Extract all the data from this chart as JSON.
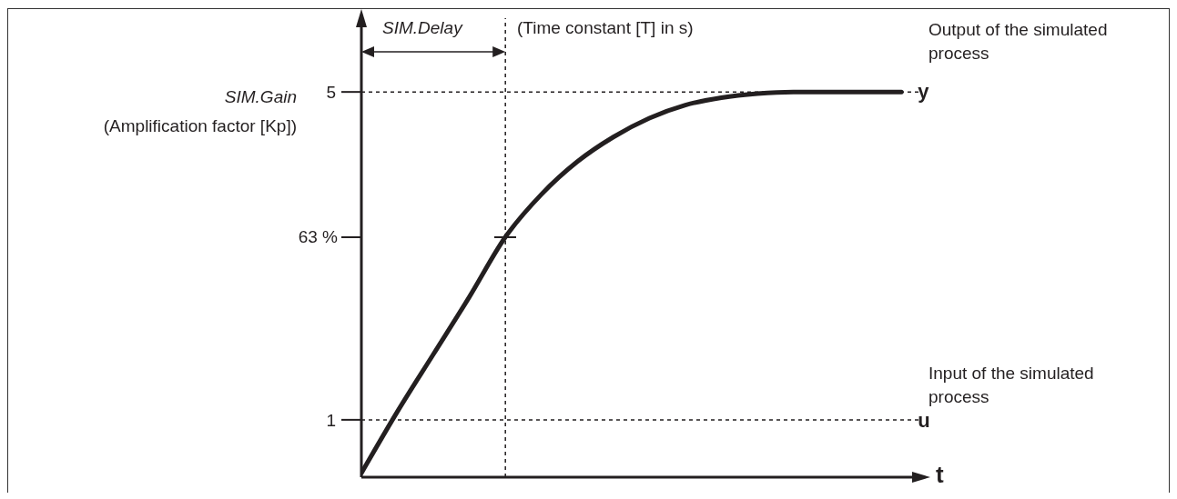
{
  "chart_data": {
    "type": "line",
    "categories": [
      null,
      null,
      null,
      null,
      null,
      null,
      null,
      null,
      null,
      null,
      null,
      null,
      null,
      null,
      null,
      null
    ],
    "series": [
      {
        "name": "y",
        "color": "#231f20",
        "values": [
          0.35,
          1.1,
          1.8,
          2.5,
          3.23,
          3.75,
          4.15,
          4.45,
          4.68,
          4.84,
          4.93,
          4.98,
          5,
          5,
          5,
          5
        ]
      }
    ],
    "ylim": [
      0.3,
      5.9
    ],
    "yticks": [
      1,
      5
    ],
    "xlabel": "t",
    "ref_lines": [
      {
        "axis": "y",
        "value": 5,
        "line_style": "dashed",
        "color": "#231f20"
      },
      {
        "axis": "y",
        "value": 1,
        "label": "u",
        "line_style": "dashed",
        "color": "#231f20"
      }
    ],
    "annotations": [
      "SIM.Gain",
      "(Amplification factor [Kp])",
      "SIM.Delay",
      "(Time constant [T] in s)",
      "Output of the simulated process",
      "Input of the simulated process",
      "63 %"
    ],
    "marker": "none",
    "line_style": "solid"
  }
}
